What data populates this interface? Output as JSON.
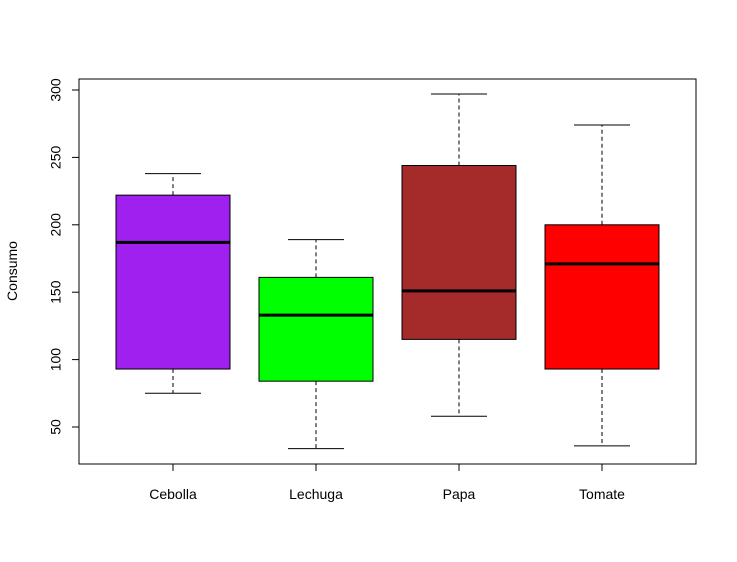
{
  "chart_data": {
    "type": "boxplot",
    "title": "",
    "xlabel": "",
    "ylabel": "Consumo",
    "ylim": [
      25,
      310
    ],
    "y_ticks": [
      50,
      100,
      150,
      200,
      250,
      300
    ],
    "grid": false,
    "legend": "none",
    "categories": [
      "Cebolla",
      "Lechuga",
      "Papa",
      "Tomate"
    ],
    "boxes": [
      {
        "category": "Cebolla",
        "min": 75,
        "q1": 93,
        "median": 187,
        "q3": 222,
        "max": 238,
        "color": "#a020f0"
      },
      {
        "category": "Lechuga",
        "min": 34,
        "q1": 84,
        "median": 133,
        "q3": 161,
        "max": 189,
        "color": "#00ff00"
      },
      {
        "category": "Papa",
        "min": 58,
        "q1": 115,
        "median": 151,
        "q3": 244,
        "max": 297,
        "color": "#a52a2a"
      },
      {
        "category": "Tomate",
        "min": 36,
        "q1": 93,
        "median": 171,
        "q3": 200,
        "max": 274,
        "color": "#ff0000"
      }
    ]
  }
}
